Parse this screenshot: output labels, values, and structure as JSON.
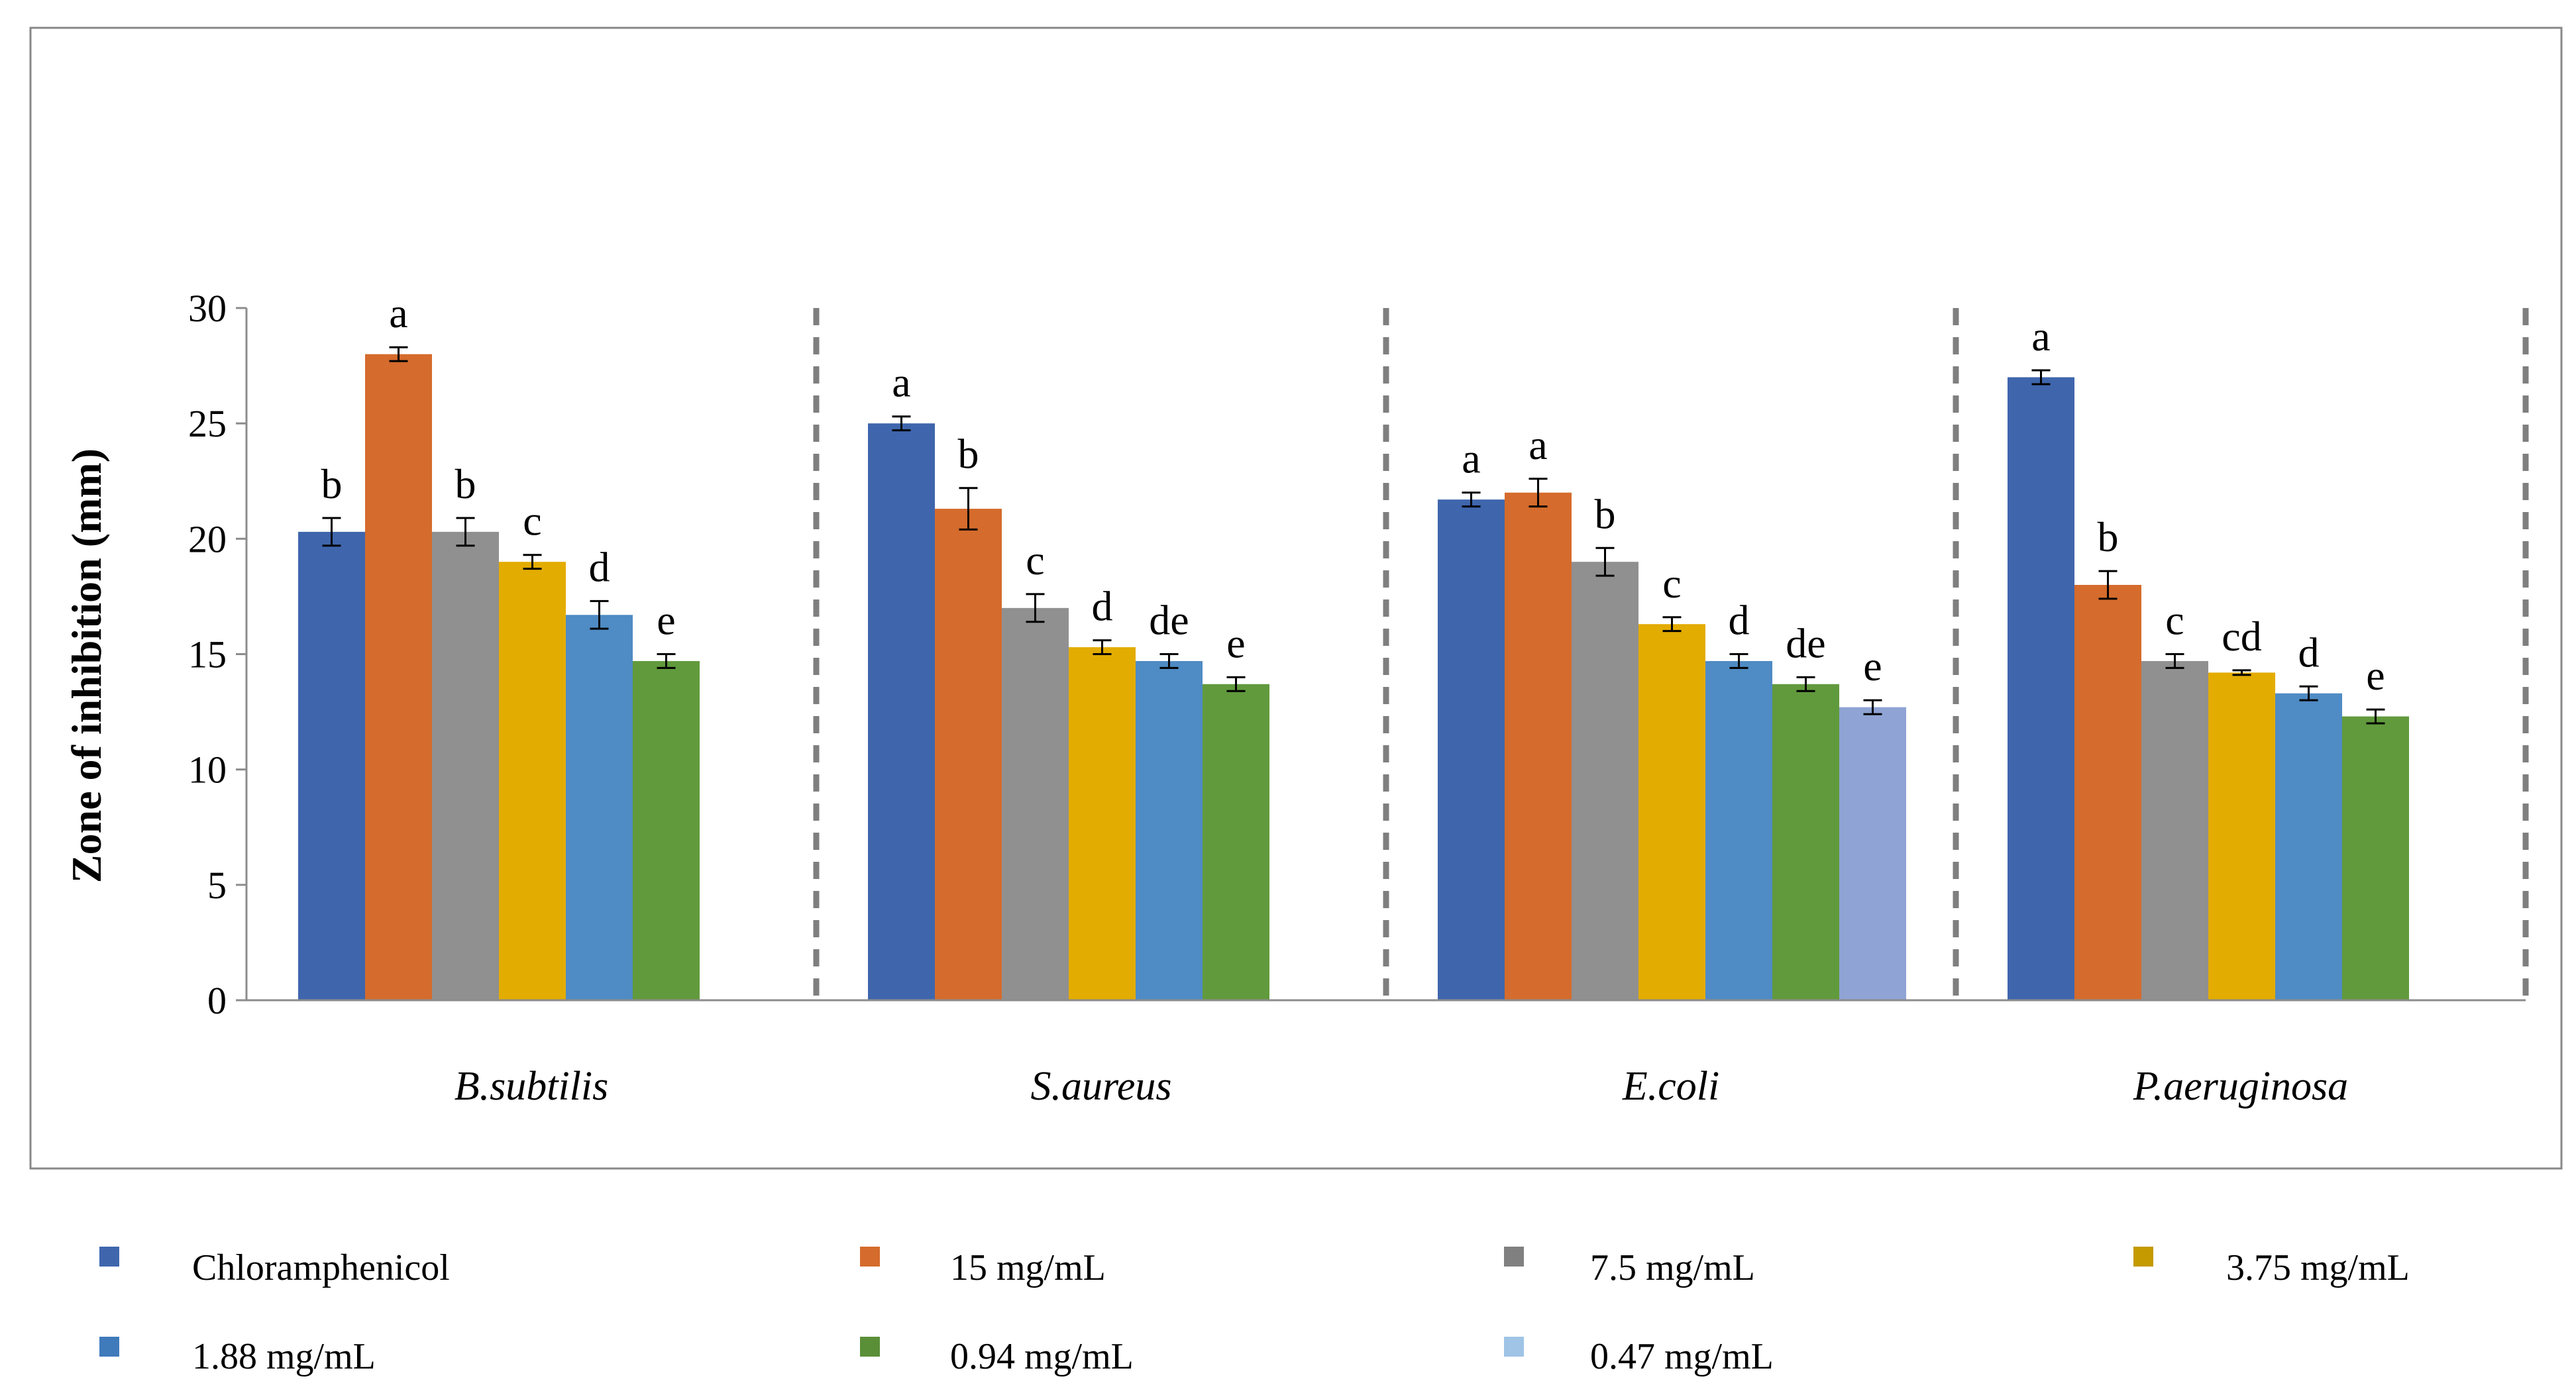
{
  "chart_data": {
    "type": "bar",
    "title": "",
    "xlabel": "",
    "ylabel": "Zone of inhibition (mm)",
    "ylim": [
      0,
      30
    ],
    "yticks": [
      0,
      5,
      10,
      15,
      20,
      25,
      30
    ],
    "grid": false,
    "legend_position": "bottom",
    "categories": [
      "B.subtilis",
      "S.aureus",
      "E.coli",
      "P.aeruginosa"
    ],
    "series": [
      {
        "name": "Chloramphenicol",
        "color": "#3f66ad",
        "values": [
          20.3,
          25.0,
          21.7,
          27.0
        ],
        "errors": [
          0.6,
          0.3,
          0.3,
          0.3
        ],
        "labels": [
          "b",
          "a",
          "a",
          "a"
        ]
      },
      {
        "name": "15 mg/mL",
        "color": "#d56b2c",
        "values": [
          28.0,
          21.3,
          22.0,
          18.0
        ],
        "errors": [
          0.3,
          0.9,
          0.6,
          0.6
        ],
        "labels": [
          "a",
          "b",
          "a",
          "b"
        ]
      },
      {
        "name": "7.5 mg/mL",
        "color": "#909090",
        "values": [
          20.3,
          17.0,
          19.0,
          14.7
        ],
        "errors": [
          0.6,
          0.6,
          0.6,
          0.3
        ],
        "labels": [
          "b",
          "c",
          "b",
          "c"
        ]
      },
      {
        "name": "3.75 mg/mL",
        "color": "#e3ac00",
        "values": [
          19.0,
          15.3,
          16.3,
          14.2
        ],
        "errors": [
          0.3,
          0.3,
          0.3,
          0.1
        ],
        "labels": [
          "c",
          "d",
          "c",
          "cd"
        ]
      },
      {
        "name": "1.88 mg/mL",
        "color": "#4f8bc4",
        "values": [
          16.7,
          14.7,
          14.7,
          13.3
        ],
        "errors": [
          0.6,
          0.3,
          0.3,
          0.3
        ],
        "labels": [
          "d",
          "de",
          "d",
          "d"
        ]
      },
      {
        "name": "0.94 mg/mL",
        "color": "#619a3c",
        "values": [
          14.7,
          13.7,
          13.7,
          12.3
        ],
        "errors": [
          0.3,
          0.3,
          0.3,
          0.3
        ],
        "labels": [
          "e",
          "e",
          "de",
          "e"
        ]
      },
      {
        "name": "0.47 mg/mL",
        "color": "#8fa3d4",
        "values": [
          null,
          null,
          12.7,
          null
        ],
        "errors": [
          null,
          null,
          0.3,
          null
        ],
        "labels": [
          null,
          null,
          "e",
          null
        ]
      }
    ],
    "legend_marker_colors": [
      "#3f66ad",
      "#d56b2c",
      "#808080",
      "#c49a00",
      "#3f7abb",
      "#5a8f38",
      "#9fc4e6"
    ]
  }
}
